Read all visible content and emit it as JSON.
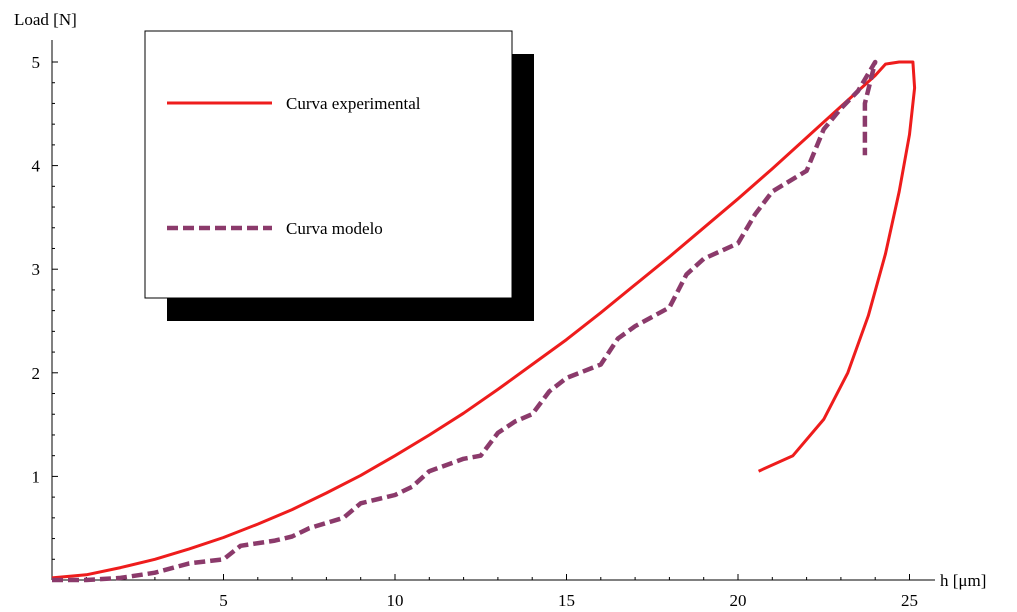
{
  "chart_data": {
    "type": "line",
    "xlabel": "h [μm]",
    "ylabel": "Load [N]",
    "xlim": [
      0,
      26.2
    ],
    "ylim": [
      0,
      5.2
    ],
    "x_ticks": [
      5,
      10,
      15,
      20,
      25
    ],
    "y_ticks": [
      1,
      2,
      3,
      4,
      5
    ],
    "grid": false,
    "legend_position": "top-left",
    "series": [
      {
        "name": "Curva experimental",
        "color": "#ee1c1c",
        "style": "solid",
        "points": [
          [
            0,
            0.02
          ],
          [
            1,
            0.05
          ],
          [
            2,
            0.12
          ],
          [
            3,
            0.2
          ],
          [
            4,
            0.3
          ],
          [
            5,
            0.41
          ],
          [
            6,
            0.54
          ],
          [
            7,
            0.68
          ],
          [
            8,
            0.84
          ],
          [
            9,
            1.01
          ],
          [
            10,
            1.2
          ],
          [
            11,
            1.4
          ],
          [
            12,
            1.61
          ],
          [
            13,
            1.84
          ],
          [
            14,
            2.08
          ],
          [
            15,
            2.32
          ],
          [
            16,
            2.58
          ],
          [
            17,
            2.85
          ],
          [
            18,
            3.12
          ],
          [
            19,
            3.4
          ],
          [
            20,
            3.68
          ],
          [
            21,
            3.97
          ],
          [
            22,
            4.27
          ],
          [
            23,
            4.57
          ],
          [
            24,
            4.87
          ],
          [
            24.3,
            4.98
          ],
          [
            24.7,
            5.0
          ],
          [
            25.1,
            5.0
          ],
          [
            25.15,
            4.75
          ],
          [
            25.0,
            4.3
          ],
          [
            24.7,
            3.75
          ],
          [
            24.3,
            3.15
          ],
          [
            23.8,
            2.55
          ],
          [
            23.2,
            2.0
          ],
          [
            22.5,
            1.55
          ],
          [
            21.6,
            1.2
          ],
          [
            20.6,
            1.05
          ]
        ]
      },
      {
        "name": "Curva modelo",
        "color": "#8b3a6b",
        "style": "dashed",
        "points": [
          [
            0,
            0.0
          ],
          [
            1,
            0.0
          ],
          [
            2,
            0.02
          ],
          [
            3,
            0.07
          ],
          [
            4,
            0.16
          ],
          [
            5,
            0.2
          ],
          [
            5.5,
            0.33
          ],
          [
            6.5,
            0.38
          ],
          [
            7,
            0.42
          ],
          [
            7.5,
            0.5
          ],
          [
            8.5,
            0.6
          ],
          [
            9,
            0.74
          ],
          [
            10,
            0.82
          ],
          [
            10.5,
            0.9
          ],
          [
            11,
            1.05
          ],
          [
            12,
            1.17
          ],
          [
            12.5,
            1.2
          ],
          [
            13,
            1.42
          ],
          [
            13.5,
            1.53
          ],
          [
            14,
            1.6
          ],
          [
            14.5,
            1.82
          ],
          [
            15,
            1.95
          ],
          [
            16,
            2.08
          ],
          [
            16.5,
            2.33
          ],
          [
            17,
            2.45
          ],
          [
            18,
            2.63
          ],
          [
            18.5,
            2.95
          ],
          [
            19,
            3.1
          ],
          [
            20,
            3.25
          ],
          [
            20.5,
            3.53
          ],
          [
            21,
            3.75
          ],
          [
            22,
            3.95
          ],
          [
            22.5,
            4.35
          ],
          [
            23,
            4.55
          ],
          [
            23.5,
            4.72
          ],
          [
            24.0,
            5.0
          ],
          [
            23.7,
            4.6
          ],
          [
            23.7,
            4.1
          ]
        ]
      }
    ]
  }
}
